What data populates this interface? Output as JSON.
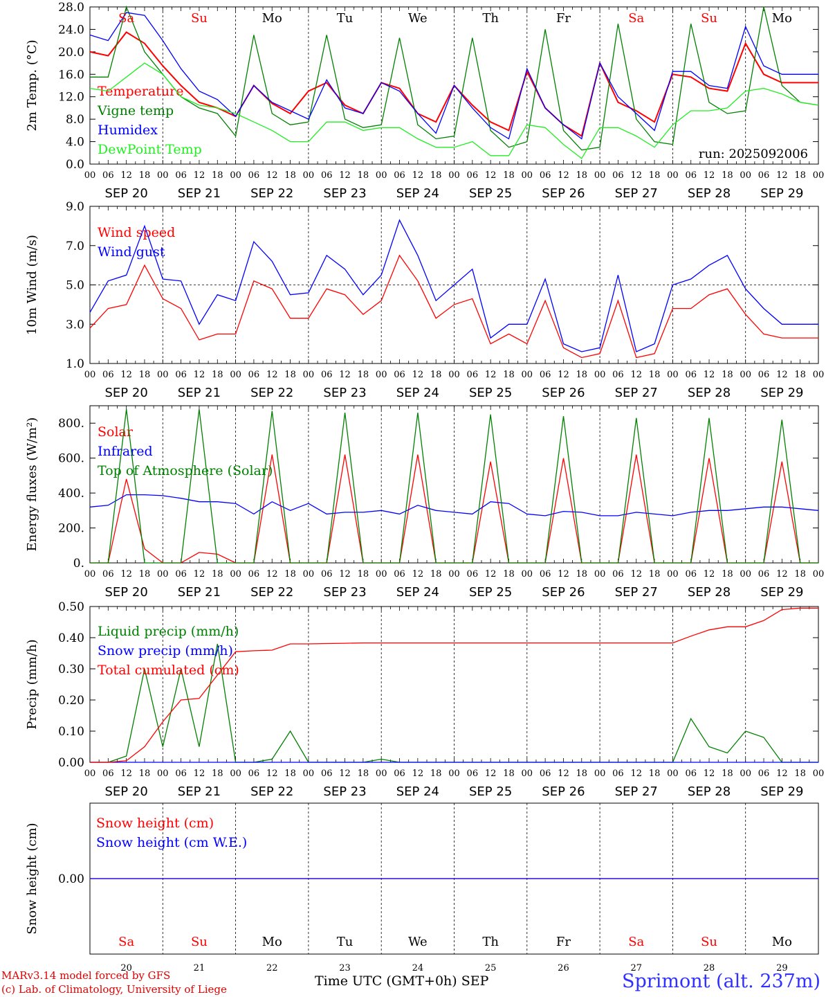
{
  "chart_data": [
    {
      "type": "line",
      "ylabel": "2m Temp. (°C)",
      "ylim": [
        0,
        28
      ],
      "yticks": [
        "0.0",
        "4.0",
        "8.0",
        "12.0",
        "16.0",
        "20.0",
        "24.0",
        "28.0"
      ],
      "xlabel": "Time UTC (GMT+0h)",
      "run_label": "run: 2025092006",
      "x_hours": [
        0,
        6,
        12,
        18,
        24,
        30,
        36,
        42,
        48,
        54,
        60,
        66,
        72,
        78,
        84,
        90,
        96,
        102,
        108,
        114,
        120,
        126,
        132,
        138,
        144,
        150,
        156,
        162,
        168,
        174,
        180,
        186,
        192,
        198,
        204,
        210,
        216,
        222,
        228,
        234,
        240
      ],
      "series": [
        {
          "name": "Temperature",
          "color": "#ff0000",
          "values": [
            20.0,
            19.3,
            23.5,
            21.5,
            17.5,
            14.0,
            11.0,
            10.0,
            8.5,
            14.0,
            10.8,
            9.0,
            13.0,
            14.5,
            10.5,
            9.0,
            14.5,
            13.5,
            9.0,
            7.5,
            14.0,
            10.5,
            7.5,
            6.0,
            16.5,
            10.0,
            7.0,
            5.0,
            18.0,
            11.0,
            9.5,
            7.5,
            16.0,
            15.5,
            13.5,
            13.0,
            21.5,
            16.0,
            14.5,
            14.5,
            14.5
          ]
        },
        {
          "name": "Vigne temp",
          "color": "#008000",
          "values": [
            15.5,
            15.5,
            28.0,
            20.0,
            16.0,
            12.0,
            10.0,
            9.0,
            5.0,
            23.0,
            9.0,
            7.0,
            7.5,
            23.0,
            8.0,
            6.5,
            7.0,
            22.5,
            7.0,
            4.5,
            5.0,
            22.5,
            6.0,
            3.0,
            4.0,
            24.0,
            6.0,
            2.5,
            3.0,
            25.0,
            8.0,
            4.0,
            3.5,
            25.0,
            11.0,
            9.0,
            9.5,
            28.0,
            14.0,
            11.0,
            10.5
          ]
        },
        {
          "name": "Humidex",
          "color": "#0000ff",
          "values": [
            23.0,
            22.0,
            27.0,
            26.5,
            22.0,
            17.0,
            13.0,
            11.5,
            8.5,
            14.0,
            11.0,
            9.5,
            8.0,
            15.0,
            10.0,
            9.0,
            14.5,
            13.0,
            9.0,
            5.5,
            14.0,
            10.0,
            6.5,
            4.5,
            17.0,
            10.0,
            7.0,
            4.5,
            18.0,
            12.0,
            9.0,
            6.0,
            16.5,
            16.5,
            14.0,
            13.5,
            24.5,
            17.5,
            16.0,
            16.0,
            16.0
          ]
        },
        {
          "name": "DewPoint Temp",
          "color": "#22ee22",
          "values": [
            13.5,
            13.0,
            15.5,
            18.0,
            16.0,
            12.0,
            10.5,
            10.0,
            9.0,
            7.5,
            6.0,
            4.0,
            4.0,
            7.5,
            7.5,
            6.0,
            6.5,
            6.5,
            4.5,
            3.0,
            3.0,
            4.0,
            1.5,
            1.5,
            7.0,
            6.5,
            3.5,
            1.0,
            6.5,
            6.5,
            5.0,
            3.0,
            7.0,
            9.5,
            9.5,
            10.0,
            13.0,
            13.5,
            12.5,
            11.0,
            10.5
          ]
        }
      ]
    },
    {
      "type": "line",
      "ylabel": "10m Wind (m/s)",
      "ylim": [
        1,
        9
      ],
      "yticks": [
        "1.0",
        "3.0",
        "5.0",
        "7.0",
        "9.0"
      ],
      "x_hours": [
        0,
        6,
        12,
        18,
        24,
        30,
        36,
        42,
        48,
        54,
        60,
        66,
        72,
        78,
        84,
        90,
        96,
        102,
        108,
        114,
        120,
        126,
        132,
        138,
        144,
        150,
        156,
        162,
        168,
        174,
        180,
        186,
        192,
        198,
        204,
        210,
        216,
        222,
        228,
        234,
        240
      ],
      "series": [
        {
          "name": "Wind speed",
          "color": "#ff0000",
          "values": [
            2.8,
            3.8,
            4.0,
            6.0,
            4.3,
            3.8,
            2.2,
            2.5,
            2.5,
            5.2,
            4.8,
            3.3,
            3.3,
            4.8,
            4.5,
            3.5,
            4.2,
            6.5,
            5.2,
            3.3,
            4.0,
            4.3,
            2.0,
            2.5,
            2.0,
            4.2,
            1.8,
            1.3,
            1.5,
            4.2,
            1.3,
            1.5,
            3.8,
            3.8,
            4.5,
            4.8,
            3.5,
            2.5,
            2.3,
            2.3,
            2.3
          ]
        },
        {
          "name": "Wind gust",
          "color": "#0000ff",
          "values": [
            3.6,
            5.2,
            5.5,
            8.0,
            5.3,
            5.2,
            3.0,
            4.5,
            4.2,
            7.2,
            6.2,
            4.5,
            4.6,
            6.5,
            5.8,
            4.5,
            5.5,
            8.3,
            6.5,
            4.2,
            5.0,
            5.8,
            2.3,
            3.0,
            3.0,
            5.3,
            2.0,
            1.6,
            1.8,
            5.5,
            1.6,
            2.0,
            5.0,
            5.3,
            6.0,
            6.5,
            4.8,
            3.8,
            3.0,
            3.0,
            3.0
          ]
        }
      ]
    },
    {
      "type": "line",
      "ylabel": "Energy fluxes (W/m²)",
      "ylim": [
        0,
        900
      ],
      "yticks": [
        "0.",
        "200.",
        "400.",
        "600.",
        "800."
      ],
      "x_hours": [
        0,
        6,
        12,
        18,
        24,
        30,
        36,
        42,
        48,
        54,
        60,
        66,
        72,
        78,
        84,
        90,
        96,
        102,
        108,
        114,
        120,
        126,
        132,
        138,
        144,
        150,
        156,
        162,
        168,
        174,
        180,
        186,
        192,
        198,
        204,
        210,
        216,
        222,
        228,
        234,
        240
      ],
      "series": [
        {
          "name": "Solar",
          "color": "#ff0000",
          "values": [
            0,
            0,
            480,
            80,
            0,
            0,
            60,
            50,
            0,
            0,
            620,
            0,
            0,
            0,
            620,
            0,
            0,
            0,
            620,
            0,
            0,
            0,
            580,
            0,
            0,
            0,
            600,
            0,
            0,
            0,
            620,
            0,
            0,
            0,
            600,
            0,
            0,
            0,
            580,
            0,
            0
          ]
        },
        {
          "name": "Infrared",
          "color": "#0000ff",
          "values": [
            320,
            330,
            390,
            390,
            385,
            370,
            350,
            350,
            340,
            280,
            350,
            300,
            340,
            280,
            290,
            290,
            300,
            280,
            330,
            300,
            290,
            280,
            350,
            340,
            280,
            270,
            295,
            290,
            270,
            270,
            290,
            280,
            270,
            290,
            300,
            300,
            310,
            320,
            320,
            310,
            300
          ]
        },
        {
          "name": "Top of Atmosphere (Solar)",
          "color": "#008000",
          "values": [
            0,
            0,
            880,
            0,
            0,
            0,
            880,
            0,
            0,
            0,
            870,
            0,
            0,
            0,
            860,
            0,
            0,
            0,
            860,
            0,
            0,
            0,
            850,
            0,
            0,
            0,
            840,
            0,
            0,
            0,
            830,
            0,
            0,
            0,
            830,
            0,
            0,
            0,
            820,
            0,
            0
          ]
        }
      ]
    },
    {
      "type": "line",
      "ylabel": "Precip (mm/h)",
      "ylim": [
        0,
        0.5
      ],
      "yticks": [
        "0.00",
        "0.10",
        "0.20",
        "0.30",
        "0.40",
        "0.50"
      ],
      "x_hours": [
        0,
        6,
        12,
        18,
        24,
        30,
        36,
        42,
        48,
        54,
        60,
        66,
        72,
        78,
        84,
        90,
        96,
        102,
        108,
        114,
        120,
        126,
        132,
        138,
        144,
        150,
        156,
        162,
        168,
        174,
        180,
        186,
        192,
        198,
        204,
        210,
        216,
        222,
        228,
        234,
        240
      ],
      "series": [
        {
          "name": "Liquid precip (mm/h)",
          "color": "#008000",
          "values": [
            0,
            0,
            0.02,
            0.3,
            0.05,
            0.3,
            0.05,
            0.38,
            0,
            0,
            0.01,
            0.1,
            0,
            0,
            0,
            0,
            0.01,
            0,
            0,
            0,
            0,
            0,
            0,
            0,
            0,
            0,
            0,
            0,
            0,
            0,
            0,
            0,
            0,
            0.14,
            0.05,
            0.03,
            0.1,
            0.08,
            0,
            0,
            0
          ]
        },
        {
          "name": "Snow precip (mm/h)",
          "color": "#0000ff",
          "values": [
            0,
            0,
            0,
            0,
            0,
            0,
            0,
            0,
            0,
            0,
            0,
            0,
            0,
            0,
            0,
            0,
            0,
            0,
            0,
            0,
            0,
            0,
            0,
            0,
            0,
            0,
            0,
            0,
            0,
            0,
            0,
            0,
            0,
            0,
            0,
            0,
            0,
            0,
            0,
            0,
            0
          ]
        },
        {
          "name": "Total cumulated (cm)",
          "color": "#ff0000",
          "values": [
            0,
            0,
            0.005,
            0.05,
            0.13,
            0.2,
            0.205,
            0.28,
            0.355,
            0.358,
            0.36,
            0.38,
            0.38,
            0.381,
            0.382,
            0.383,
            0.383,
            0.383,
            0.383,
            0.383,
            0.383,
            0.383,
            0.383,
            0.383,
            0.383,
            0.383,
            0.383,
            0.383,
            0.383,
            0.383,
            0.383,
            0.383,
            0.383,
            0.405,
            0.425,
            0.435,
            0.435,
            0.455,
            0.49,
            0.495,
            0.495
          ]
        }
      ]
    },
    {
      "type": "line",
      "ylabel": "Snow height (cm)",
      "ylim": [
        -1,
        1
      ],
      "yticks": [
        "0.00"
      ],
      "x_hours": [
        0,
        240
      ],
      "series": [
        {
          "name": "Snow height (cm)",
          "color": "#ff0000",
          "values": [
            0,
            0
          ]
        },
        {
          "name": "Snow height (cm W.E.)",
          "color": "#0000ff",
          "values": [
            0,
            0
          ]
        }
      ]
    }
  ],
  "days": [
    {
      "abbr": "Sa",
      "date": "SEP 20",
      "num": "20",
      "weekend": true
    },
    {
      "abbr": "Su",
      "date": "SEP 21",
      "num": "21",
      "weekend": true
    },
    {
      "abbr": "Mo",
      "date": "SEP 22",
      "num": "22",
      "weekend": false
    },
    {
      "abbr": "Tu",
      "date": "SEP 23",
      "num": "23",
      "weekend": false
    },
    {
      "abbr": "We",
      "date": "SEP 24",
      "num": "24",
      "weekend": false
    },
    {
      "abbr": "Th",
      "date": "SEP 25",
      "num": "25",
      "weekend": false
    },
    {
      "abbr": "Fr",
      "date": "SEP 26",
      "num": "26",
      "weekend": false
    },
    {
      "abbr": "Sa",
      "date": "SEP 27",
      "num": "27",
      "weekend": true
    },
    {
      "abbr": "Su",
      "date": "SEP 28",
      "num": "28",
      "weekend": true
    },
    {
      "abbr": "Mo",
      "date": "SEP 29",
      "num": "29",
      "weekend": false
    }
  ],
  "hour_ticks": [
    "00",
    "06",
    "12",
    "18"
  ],
  "month_label": "SEP",
  "colors": {
    "weekend": "#ff0000",
    "weekday": "#000000",
    "footer": "#e00000",
    "station": "#3030ff"
  },
  "footer": {
    "model": "MARv3.14 model forced by GFS",
    "lab": "(c) Lab. of Climatology, University of Liege",
    "time_label": "Time UTC (GMT+0h)",
    "station": "Sprimont (alt. 237m)"
  }
}
